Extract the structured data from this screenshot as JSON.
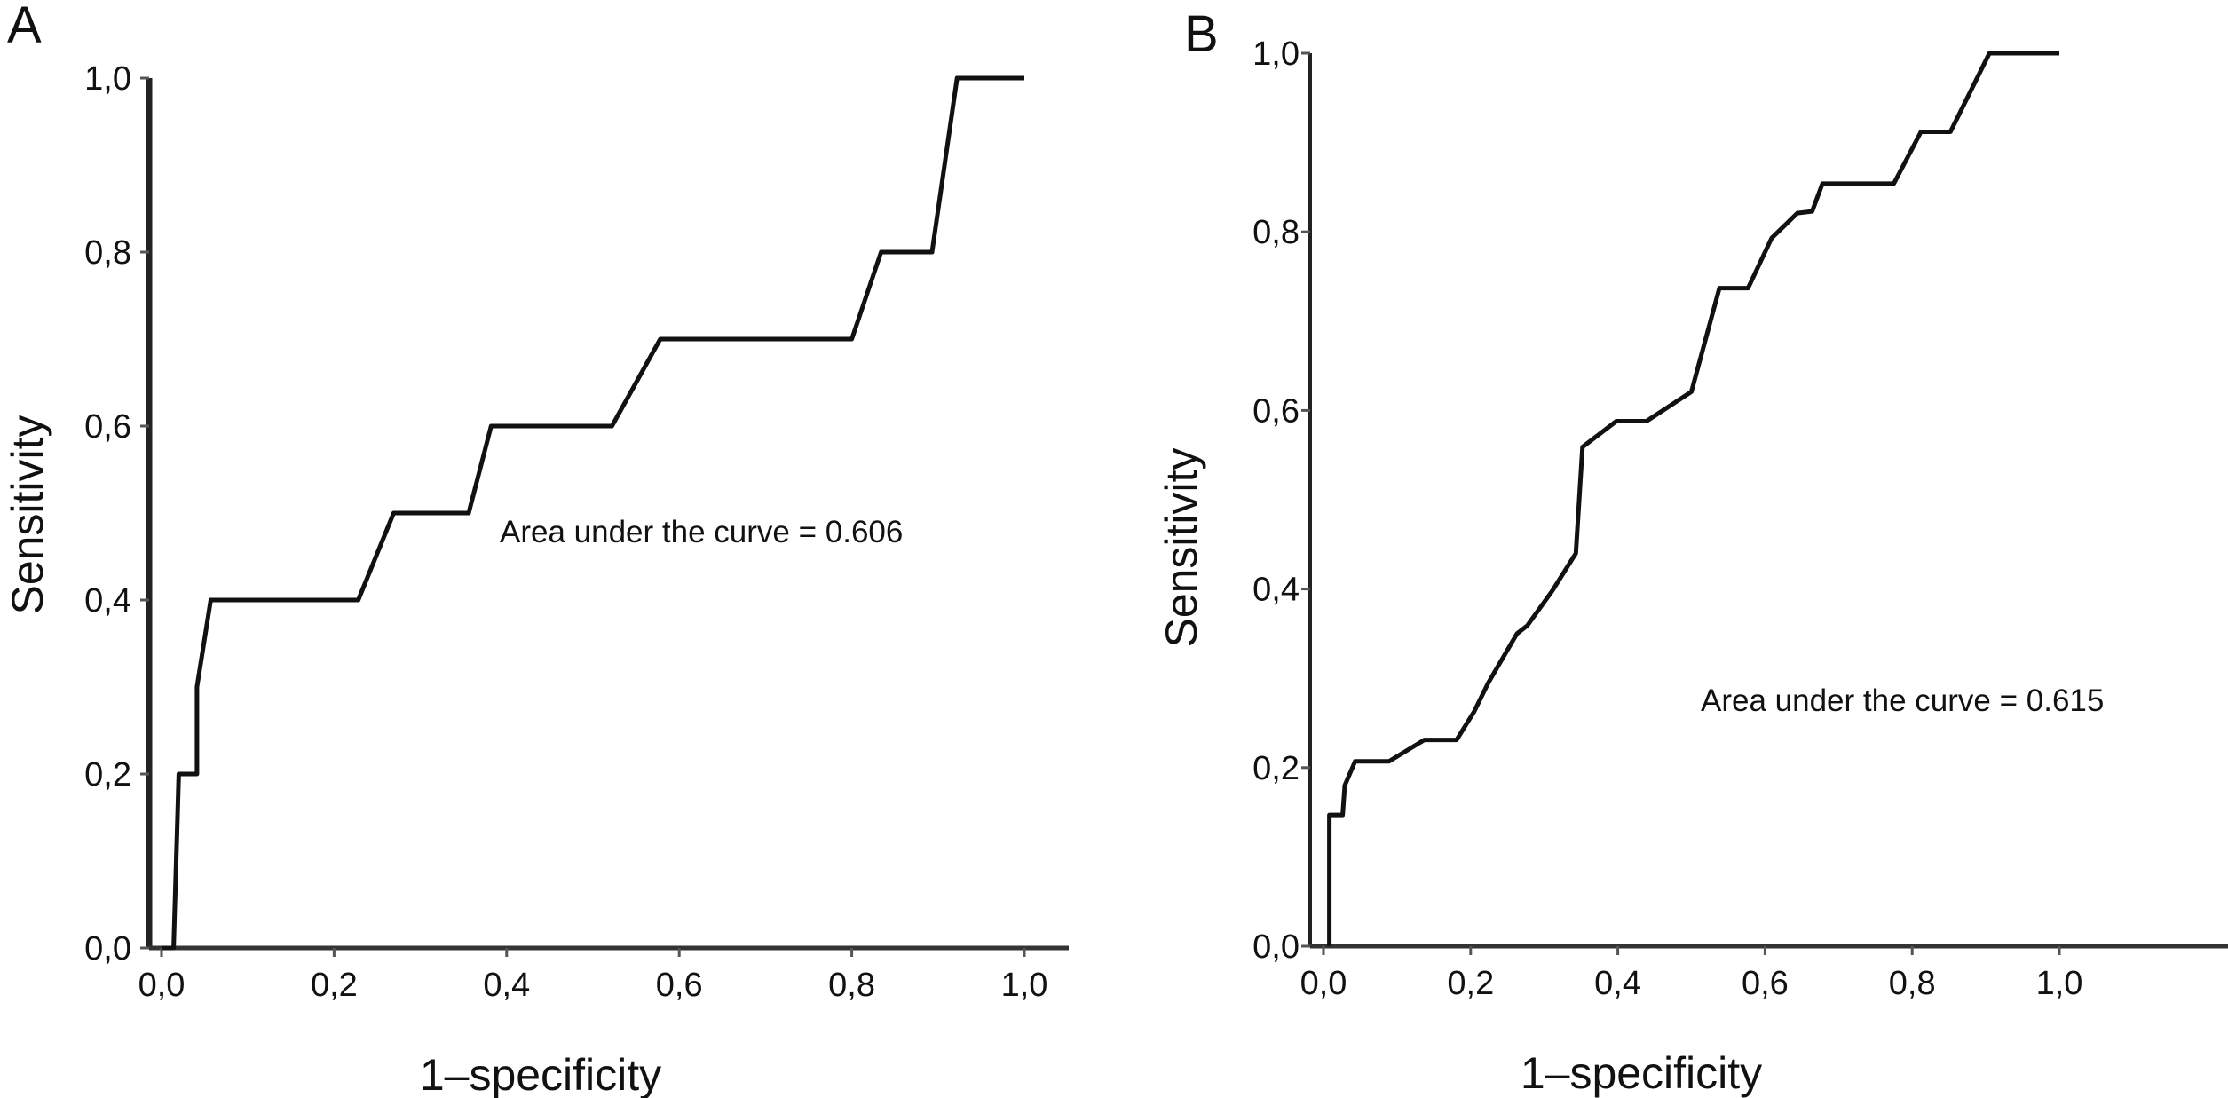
{
  "chart_data": [
    {
      "type": "line",
      "panel_label": "A",
      "xlabel": "1–specificity",
      "ylabel": "Sensitivity",
      "xlim": [
        0,
        1
      ],
      "ylim": [
        0,
        1
      ],
      "xticks": [
        "0,0",
        "0,2",
        "0,4",
        "0,6",
        "0,8",
        "1,0"
      ],
      "yticks": [
        "0,0",
        "0,2",
        "0,4",
        "0,6",
        "0,8",
        "1,0"
      ],
      "grid": false,
      "annotation": "Area under the curve = 0.606",
      "line_color": "#111111",
      "series": [
        {
          "x": [
            0,
            0.014,
            0.02,
            0.041,
            0.041,
            0.057,
            0.228,
            0.269,
            0.356,
            0.382,
            0.522,
            0.578,
            0.8,
            0.834,
            0.893,
            0.922,
            1.0
          ],
          "y": [
            0,
            0,
            0.2,
            0.2,
            0.3,
            0.4,
            0.4,
            0.5,
            0.5,
            0.6,
            0.6,
            0.7,
            0.7,
            0.8,
            0.8,
            1.0,
            1.0
          ]
        }
      ]
    },
    {
      "type": "line",
      "panel_label": "B",
      "xlabel": "1–specificity",
      "ylabel": "Sensitivity",
      "xlim": [
        0,
        1
      ],
      "ylim": [
        0,
        1
      ],
      "xticks": [
        "0,0",
        "0,2",
        "0,4",
        "0,6",
        "0,8",
        "1,0"
      ],
      "yticks": [
        "0,0",
        "0,2",
        "0,4",
        "0,6",
        "0,8",
        "1,0"
      ],
      "grid": false,
      "annotation": "Area under the curve = 0.615",
      "line_color": "#111111",
      "series": [
        {
          "x": [
            0.008,
            0.008,
            0.026,
            0.029,
            0.043,
            0.089,
            0.137,
            0.181,
            0.205,
            0.224,
            0.263,
            0.277,
            0.311,
            0.343,
            0.352,
            0.398,
            0.439,
            0.5,
            0.538,
            0.577,
            0.609,
            0.644,
            0.664,
            0.678,
            0.775,
            0.812,
            0.852,
            0.905,
            1.0
          ],
          "y": [
            0,
            0.147,
            0.147,
            0.18,
            0.207,
            0.207,
            0.231,
            0.231,
            0.263,
            0.295,
            0.35,
            0.359,
            0.398,
            0.44,
            0.559,
            0.588,
            0.588,
            0.621,
            0.737,
            0.737,
            0.793,
            0.821,
            0.823,
            0.854,
            0.854,
            0.912,
            0.912,
            1.0,
            1.0
          ]
        }
      ]
    }
  ]
}
